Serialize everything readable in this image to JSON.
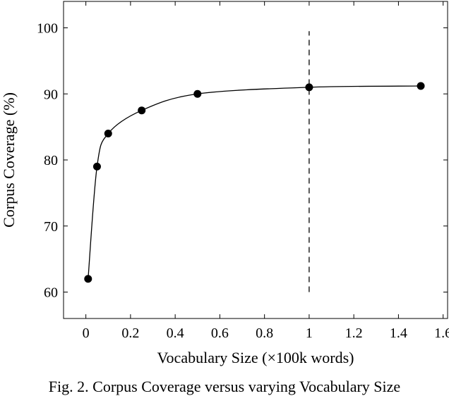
{
  "chart_data": {
    "type": "line",
    "xlabel": "Vocabulary Size (×100k words)",
    "ylabel": "Corpus Coverage (%)",
    "xlim": [
      -0.1,
      1.62
    ],
    "ylim": [
      56,
      104
    ],
    "xticks": [
      "0",
      "0.2",
      "0.4",
      "0.6",
      "0.8",
      "1",
      "1.2",
      "1.4",
      "1.6"
    ],
    "yticks": [
      "60",
      "70",
      "80",
      "90",
      "100"
    ],
    "grid": false,
    "series": [
      {
        "x": [
          0.01,
          0.05,
          0.1,
          0.25,
          0.5,
          1.0,
          1.5
        ],
        "y": [
          62,
          79,
          84,
          87.5,
          90,
          91,
          91.2
        ],
        "color": "#000000",
        "marker": "circle",
        "smooth": true
      }
    ],
    "reference_line": {
      "x": 1.0,
      "y_range": [
        60,
        99.5
      ],
      "style": "dashed"
    }
  },
  "caption": "Fig. 2. Corpus Coverage versus varying Vocabulary Size"
}
